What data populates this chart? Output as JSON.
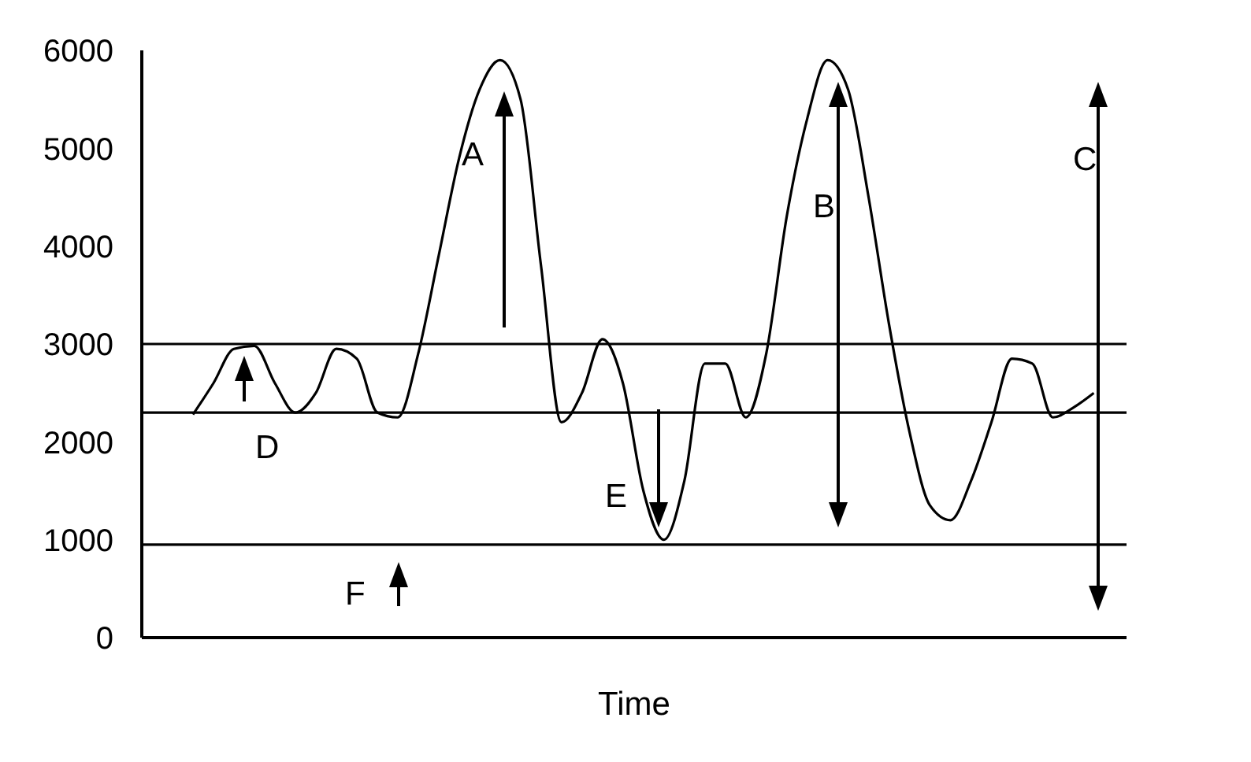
{
  "chart_data": {
    "type": "line",
    "xlabel": "Time",
    "categories": [
      null,
      null,
      null,
      null,
      null,
      null,
      null,
      null,
      null,
      null,
      null,
      null,
      null,
      null,
      null,
      null,
      null,
      null,
      null,
      null,
      null,
      null,
      null,
      null,
      null,
      null,
      null,
      null,
      null,
      null,
      null,
      null,
      null,
      null,
      null,
      null,
      null,
      null,
      null,
      null,
      null,
      null,
      null,
      null,
      null
    ],
    "series": [
      {
        "color": "#000000",
        "values": [
          2280,
          2600,
          2950,
          2980,
          2600,
          2300,
          2500,
          2950,
          2850,
          2300,
          2250,
          2900,
          3900,
          4900,
          5600,
          5900,
          5500,
          3800,
          2200,
          2500,
          3050,
          2600,
          1500,
          1000,
          1600,
          2800,
          2800,
          2250,
          2900,
          4300,
          5300,
          5900,
          5600,
          4500,
          3200,
          2100,
          1350,
          1200,
          1600,
          2200,
          2850,
          2800,
          2250,
          2350,
          2500
        ]
      }
    ],
    "ylim": [
      0,
      6000
    ],
    "yticks": [
      0,
      1000,
      2000,
      3000,
      4000,
      5000,
      6000
    ],
    "tick_labels": "y",
    "grid": false,
    "legend": false,
    "marker": "none",
    "line_style": "solid",
    "ref_lines": [
      {
        "axis": "y",
        "value": 3000,
        "color": "#000000"
      },
      {
        "axis": "y",
        "value": 2300,
        "color": "#000000"
      },
      {
        "axis": "y",
        "value": 950,
        "color": "#000000"
      }
    ],
    "annotations": [
      "A",
      "B",
      "C",
      "D",
      "E",
      "F"
    ]
  }
}
